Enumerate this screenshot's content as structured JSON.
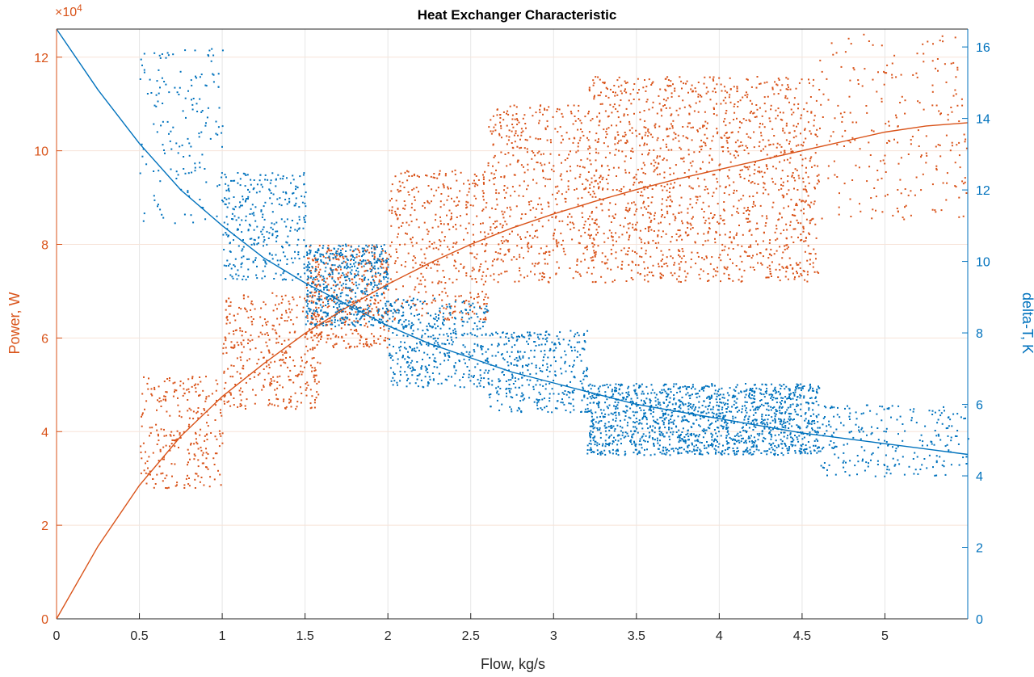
{
  "chart_data": {
    "type": "scatter",
    "title": "Heat Exchanger Characteristic",
    "xlabel": "Flow, kg/s",
    "xlim": [
      0,
      5.5
    ],
    "xticks": [
      "0",
      "0.5",
      "1",
      "1.5",
      "2",
      "2.5",
      "3",
      "3.5",
      "4",
      "4.5",
      "5"
    ],
    "grid": true,
    "y_left": {
      "label": "Power, W",
      "exponent_label": "×10",
      "exponent_power": "4",
      "ylim": [
        0,
        126000
      ],
      "ticks": [
        "0",
        "2",
        "4",
        "6",
        "8",
        "10",
        "12"
      ],
      "color": "#D95319"
    },
    "y_right": {
      "label": "delta-T, K",
      "ylim": [
        0,
        16.5
      ],
      "ticks": [
        "0",
        "2",
        "4",
        "6",
        "8",
        "10",
        "12",
        "14",
        "16"
      ],
      "color": "#0072BD"
    },
    "series": [
      {
        "kind": "scatter",
        "axis": "left",
        "color": "#D95319",
        "clusters": [
          {
            "x": [
              0.5,
              1.0
            ],
            "y": [
              28000,
              52000
            ],
            "n": 260
          },
          {
            "x": [
              1.0,
              1.6
            ],
            "y": [
              45000,
              70000
            ],
            "n": 380
          },
          {
            "x": [
              1.5,
              2.0
            ],
            "y": [
              58000,
              80000
            ],
            "n": 420
          },
          {
            "x": [
              2.0,
              2.6
            ],
            "y": [
              64000,
              96000
            ],
            "n": 420
          },
          {
            "x": [
              2.6,
              3.2
            ],
            "y": [
              72000,
              110000
            ],
            "n": 480
          },
          {
            "x": [
              3.2,
              4.6
            ],
            "y": [
              72000,
              116000
            ],
            "n": 1500
          },
          {
            "x": [
              4.6,
              5.5
            ],
            "y": [
              85000,
              125000
            ],
            "n": 240
          }
        ]
      },
      {
        "kind": "scatter",
        "axis": "right",
        "color": "#0072BD",
        "clusters": [
          {
            "x": [
              0.5,
              1.0
            ],
            "y": [
              11.0,
              16.0
            ],
            "n": 160
          },
          {
            "x": [
              1.0,
              1.5
            ],
            "y": [
              9.5,
              12.5
            ],
            "n": 320
          },
          {
            "x": [
              1.5,
              2.0
            ],
            "y": [
              8.2,
              10.5
            ],
            "n": 520
          },
          {
            "x": [
              2.0,
              2.6
            ],
            "y": [
              6.5,
              9.0
            ],
            "n": 420
          },
          {
            "x": [
              2.6,
              3.2
            ],
            "y": [
              5.8,
              8.1
            ],
            "n": 360
          },
          {
            "x": [
              3.2,
              4.6
            ],
            "y": [
              4.6,
              6.6
            ],
            "n": 1500
          },
          {
            "x": [
              4.6,
              5.5
            ],
            "y": [
              4.0,
              6.0
            ],
            "n": 240
          }
        ]
      },
      {
        "kind": "line",
        "axis": "left",
        "color": "#D95319",
        "x": [
          0,
          0.25,
          0.5,
          0.75,
          1.0,
          1.25,
          1.5,
          1.75,
          2.0,
          2.25,
          2.5,
          2.75,
          3.0,
          3.25,
          3.5,
          3.75,
          4.0,
          4.25,
          4.5,
          4.75,
          5.0,
          5.25,
          5.5
        ],
        "y": [
          0,
          15500,
          28500,
          39000,
          47500,
          54500,
          61000,
          66500,
          71500,
          76000,
          80000,
          83500,
          86500,
          89200,
          91700,
          94000,
          96000,
          98000,
          100000,
          102000,
          104000,
          105300,
          106000
        ]
      },
      {
        "kind": "line",
        "axis": "right",
        "color": "#0072BD",
        "x": [
          0,
          0.25,
          0.5,
          0.75,
          1.0,
          1.25,
          1.5,
          1.75,
          2.0,
          2.25,
          2.5,
          2.75,
          3.0,
          3.25,
          3.5,
          3.75,
          4.0,
          4.25,
          4.5,
          4.75,
          5.0,
          5.25,
          5.5
        ],
        "y": [
          16.5,
          14.8,
          13.3,
          12.0,
          11.0,
          10.1,
          9.4,
          8.8,
          8.2,
          7.7,
          7.3,
          6.9,
          6.6,
          6.3,
          6.0,
          5.8,
          5.6,
          5.4,
          5.2,
          5.05,
          4.9,
          4.75,
          4.6
        ]
      }
    ]
  }
}
